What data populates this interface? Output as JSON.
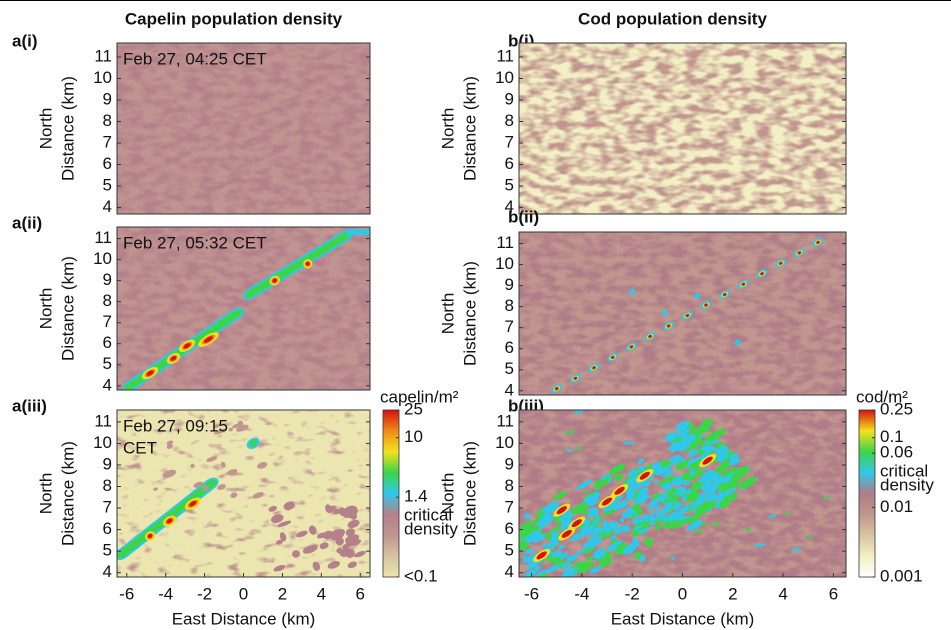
{
  "chart_data": [
    {
      "type": "heatmap",
      "title": "Capelin population density",
      "label": "a(i)",
      "annotation": [
        "Feb 27, 04:25 CET"
      ],
      "ylabel": [
        "North",
        "Distance (km)"
      ],
      "xlim": [
        -6.5,
        6.5
      ],
      "ylim": [
        3.7,
        11.65
      ],
      "yticks": [
        4,
        5,
        6,
        7,
        8,
        9,
        10,
        11
      ]
    },
    {
      "type": "heatmap",
      "label": "a(ii)",
      "annotation": [
        "Feb 27, 05:32 CET"
      ],
      "ylabel": [
        "North",
        "Distance (km)"
      ],
      "xlim": [
        -6.5,
        6.5
      ],
      "ylim": [
        3.8,
        11.55
      ],
      "yticks": [
        4,
        5,
        6,
        7,
        8,
        9,
        10,
        11
      ]
    },
    {
      "type": "heatmap",
      "label": "a(iii)",
      "annotation": [
        "Feb 27, 09:15",
        "CET"
      ],
      "ylabel": [
        "North",
        "Distance (km)"
      ],
      "xlabel": "East Distance (km)",
      "xlim": [
        -6.5,
        6.5
      ],
      "ylim": [
        3.8,
        11.55
      ],
      "xticks": [
        -6,
        -4,
        -2,
        0,
        2,
        4,
        6
      ],
      "yticks": [
        4,
        5,
        6,
        7,
        8,
        9,
        10,
        11
      ],
      "colorbar": {
        "label": "capelin/m²",
        "log": true,
        "lim": [
          0.1,
          25
        ],
        "ticks": [
          {
            "value": 0.1,
            "label": "<0.1"
          },
          1.4,
          10,
          25
        ],
        "annotation": [
          "critical",
          "density"
        ],
        "cmap": [
          "#ebe5b0",
          "#d6c29e",
          "#c09490",
          "#b4808a",
          "#2fc8e8",
          "#3ed44a",
          "#f2e21c",
          "#f08a16",
          "#d81010"
        ]
      }
    },
    {
      "type": "heatmap",
      "title": "Cod population density",
      "label": "b(i)",
      "ylabel": [
        "North",
        "Distance (km)"
      ],
      "xlim": [
        -6.5,
        6.5
      ],
      "ylim": [
        3.7,
        11.65
      ],
      "yticks": [
        4,
        5,
        6,
        7,
        8,
        9,
        10,
        11
      ]
    },
    {
      "type": "heatmap",
      "label": "b(ii)",
      "ylabel": [
        "North",
        "Distance (km)"
      ],
      "xlim": [
        -6.5,
        6.5
      ],
      "ylim": [
        3.8,
        11.55
      ],
      "yticks": [
        4,
        5,
        6,
        7,
        8,
        9,
        10,
        11
      ]
    },
    {
      "type": "heatmap",
      "label": "b(iii)",
      "ylabel": [
        "North",
        "Distance (km)"
      ],
      "xlabel": "East Distance (km)",
      "xlim": [
        -6.5,
        6.5
      ],
      "ylim": [
        3.8,
        11.55
      ],
      "xticks": [
        -6,
        -4,
        -2,
        0,
        2,
        4,
        6
      ],
      "yticks": [
        4,
        5,
        6,
        7,
        8,
        9,
        10,
        11
      ],
      "colorbar": {
        "label": "cod/m²",
        "log": true,
        "lim": [
          0.001,
          0.25
        ],
        "ticks": [
          0.001,
          0.01,
          0.06,
          0.1,
          0.25
        ],
        "annotation": [
          "critical",
          "density"
        ],
        "cmap": [
          "#ffffff",
          "#f3efc4",
          "#d9c4a0",
          "#c0968e",
          "#b07c88",
          "#2fc8e8",
          "#3ed44a",
          "#f2e21c",
          "#d81010"
        ]
      }
    }
  ]
}
